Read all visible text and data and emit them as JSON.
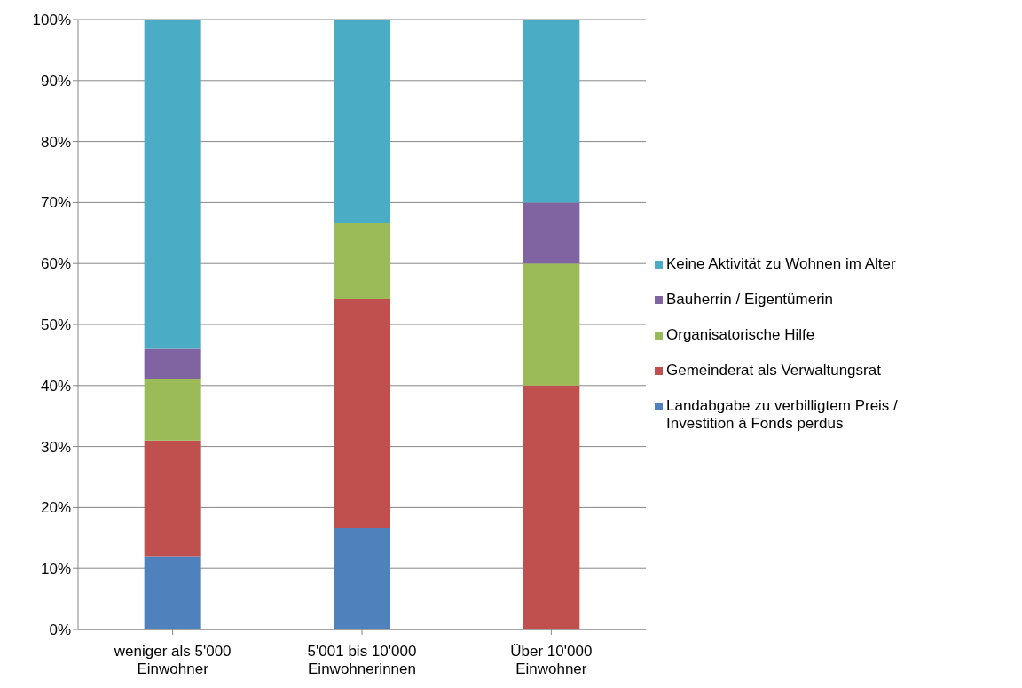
{
  "chart_data": {
    "type": "bar",
    "stacked": true,
    "categories": [
      "weniger als 5'000 Einwohner",
      "5'001 bis 10'000 Einwohnerinnen",
      "Über 10'000 Einwohner"
    ],
    "series": [
      {
        "name": "Landabgabe zu verbilligtem Preis / Investition à Fonds perdus",
        "color": "#4f81bd",
        "values": [
          12,
          16.7,
          0
        ]
      },
      {
        "name": "Gemeinderat als Verwaltungsrat",
        "color": "#c0504d",
        "values": [
          19,
          37.5,
          40
        ]
      },
      {
        "name": "Organisatorische Hilfe",
        "color": "#9bbb59",
        "values": [
          10,
          12.5,
          20
        ]
      },
      {
        "name": "Bauherrin / Eigentümerin",
        "color": "#8064a2",
        "values": [
          5,
          0,
          10
        ]
      },
      {
        "name": "Keine Aktivität zu Wohnen im Alter",
        "color": "#4bacc6",
        "values": [
          54,
          33.3,
          30
        ]
      }
    ],
    "ylim": [
      0,
      100
    ],
    "yticks": [
      {
        "value": 0,
        "label": "0%"
      },
      {
        "value": 10,
        "label": "10%"
      },
      {
        "value": 20,
        "label": "20%"
      },
      {
        "value": 30,
        "label": "30%"
      },
      {
        "value": 40,
        "label": "40%"
      },
      {
        "value": 50,
        "label": "50%"
      },
      {
        "value": 60,
        "label": "60%"
      },
      {
        "value": 70,
        "label": "70%"
      },
      {
        "value": 80,
        "label": "80%"
      },
      {
        "value": 90,
        "label": "90%"
      },
      {
        "value": 100,
        "label": "100%"
      }
    ],
    "grid": "y",
    "legend": "right"
  }
}
